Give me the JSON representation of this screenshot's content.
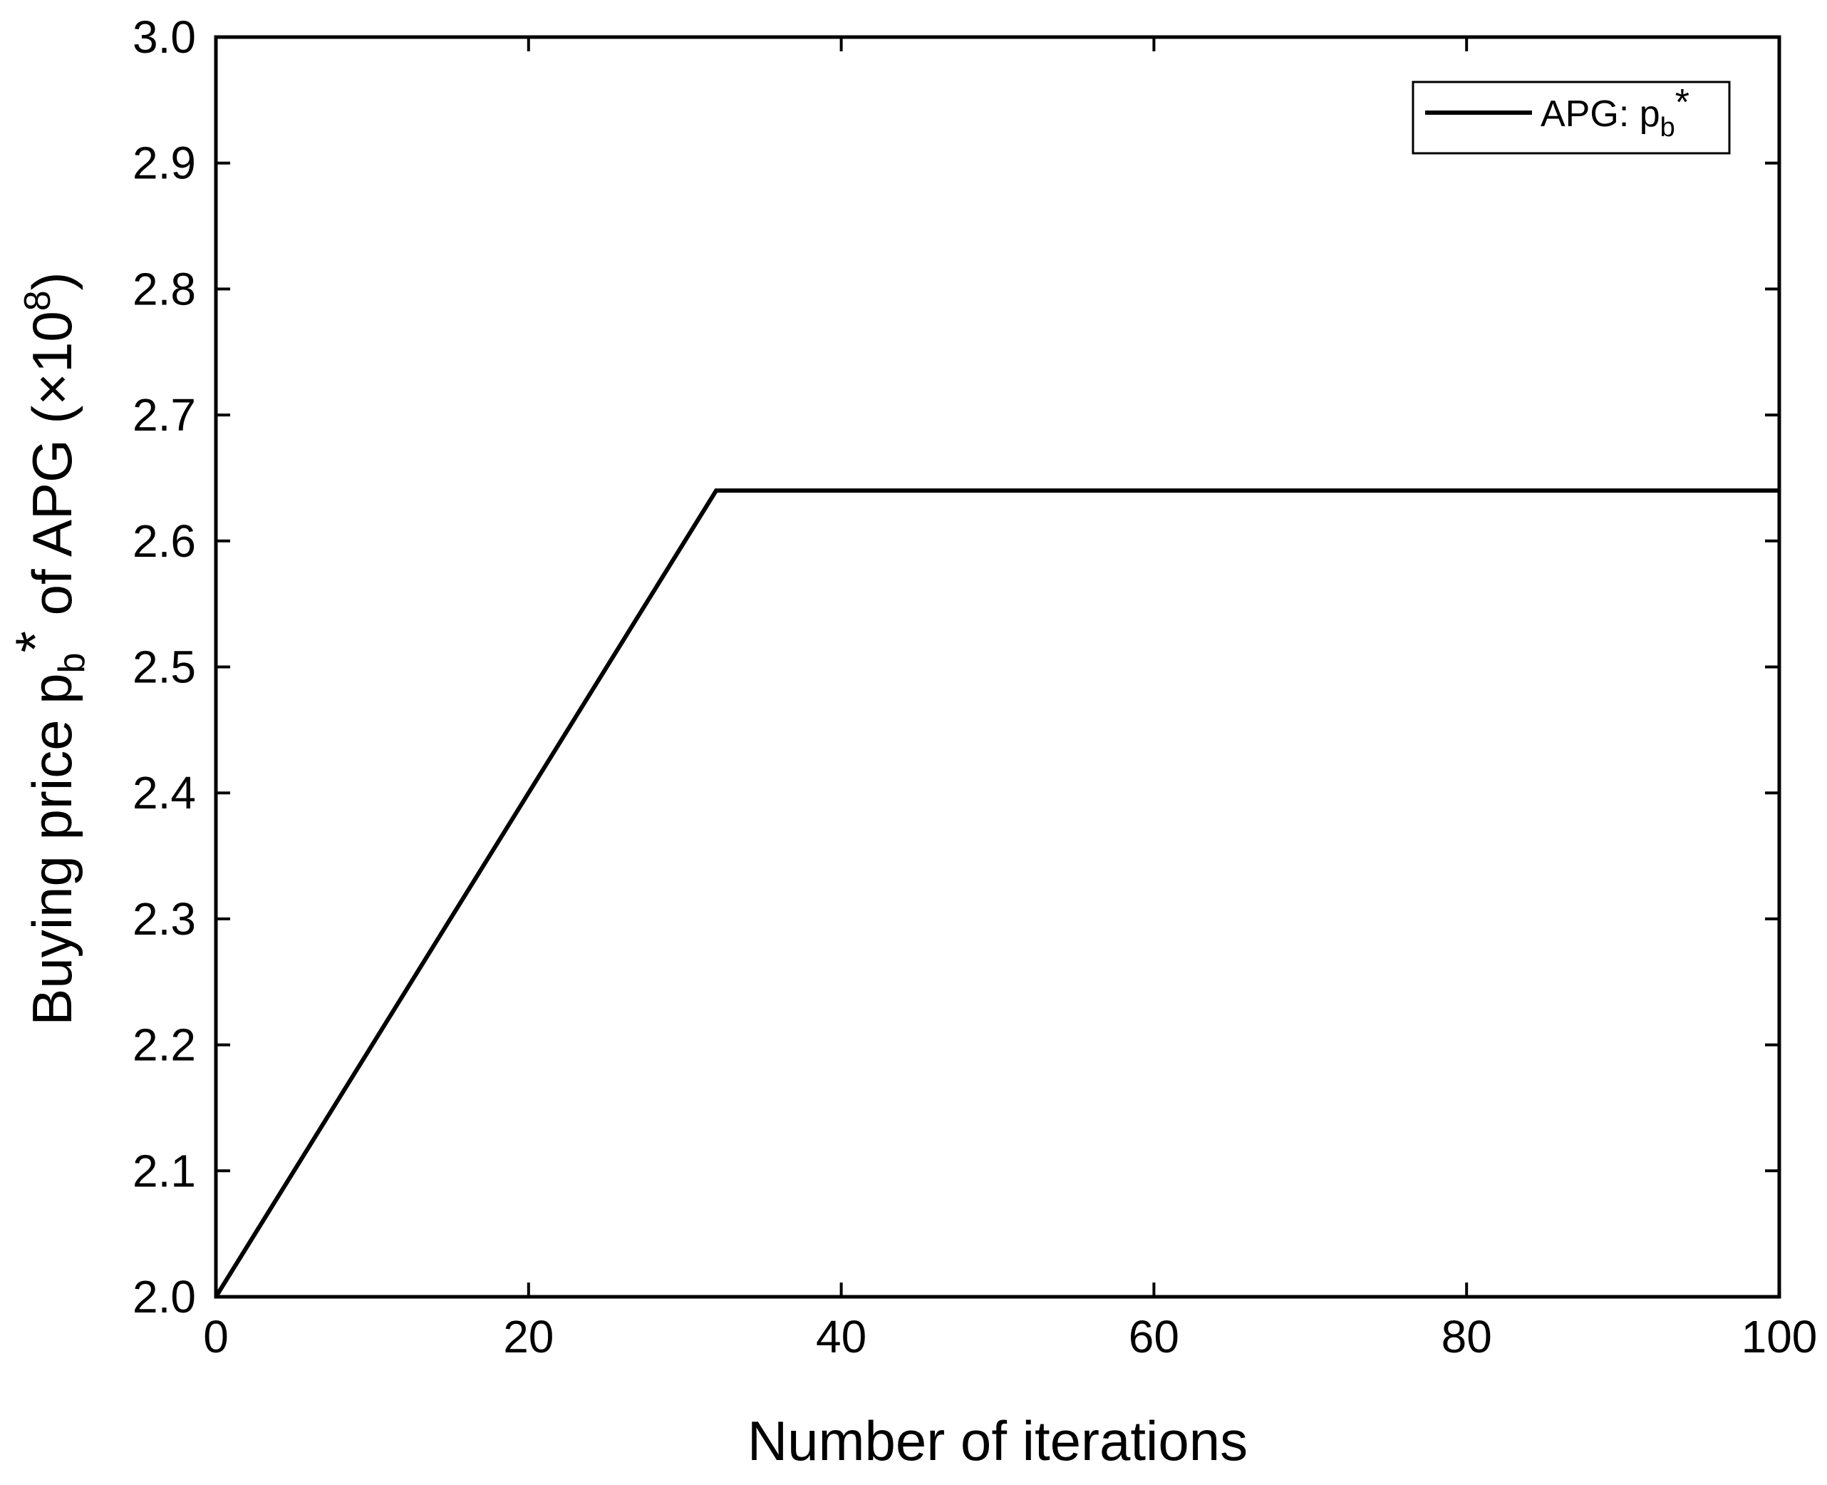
{
  "chart_data": {
    "type": "line",
    "title": "",
    "xlabel": "Number of iterations",
    "ylabel": {
      "main": "Buying price p",
      "sub": "b",
      "star": "*",
      "rest": " of APG (×10",
      "exp": "8",
      "close": ")"
    },
    "xlim": [
      0,
      100
    ],
    "ylim": [
      2.0,
      3.0
    ],
    "xticks": [
      0,
      20,
      40,
      60,
      80,
      100
    ],
    "xtick_labels": [
      "0",
      "20",
      "40",
      "60",
      "80",
      "100"
    ],
    "yticks": [
      2.0,
      2.1,
      2.2,
      2.3,
      2.4,
      2.5,
      2.6,
      2.7,
      2.8,
      2.9,
      3.0
    ],
    "ytick_labels": [
      "2.0",
      "2.1",
      "2.2",
      "2.3",
      "2.4",
      "2.5",
      "2.6",
      "2.7",
      "2.8",
      "2.9",
      "3.0"
    ],
    "grid": false,
    "legend_position": "top-right",
    "series": [
      {
        "name": "APG: p",
        "name_sub": "b",
        "name_star": "*",
        "color": "#000000",
        "x": [
          0,
          32,
          100
        ],
        "y": [
          2.0,
          2.64,
          2.64
        ]
      }
    ]
  }
}
